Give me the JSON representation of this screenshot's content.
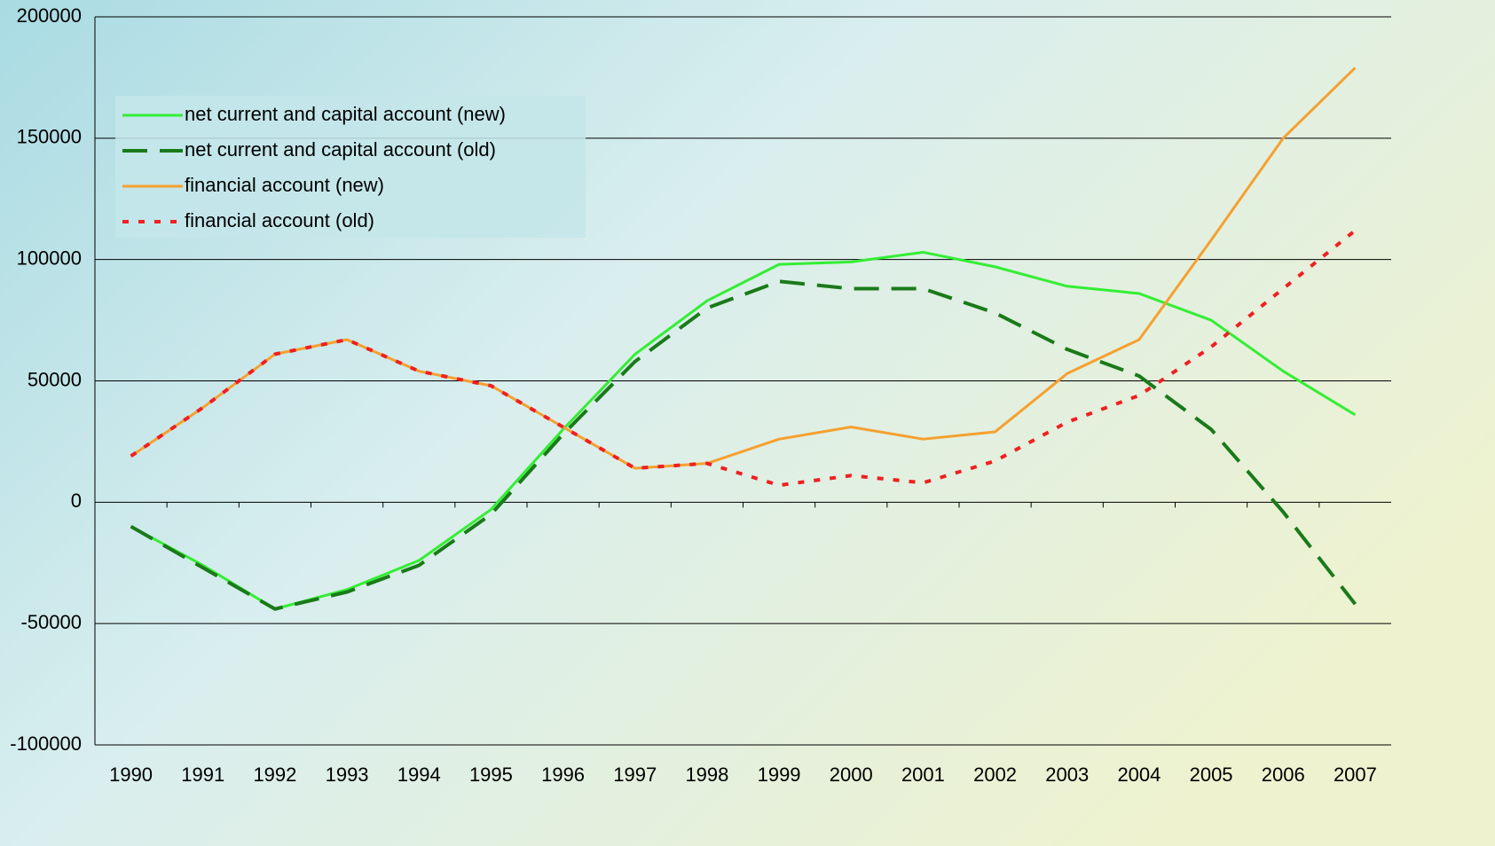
{
  "chart_data": {
    "type": "line",
    "categories": [
      "1990",
      "1991",
      "1992",
      "1993",
      "1994",
      "1995",
      "1996",
      "1997",
      "1998",
      "1999",
      "2000",
      "2001",
      "2002",
      "2003",
      "2004",
      "2005",
      "2006",
      "2007"
    ],
    "series": [
      {
        "name": "net current and capital account (new)",
        "color": "#33ee33",
        "dash": "solid",
        "values": [
          -10000,
          -26000,
          -44000,
          -36000,
          -24000,
          -3000,
          30000,
          61000,
          83000,
          98000,
          99000,
          103000,
          97000,
          89000,
          86000,
          75000,
          54000,
          36000
        ]
      },
      {
        "name": "net current and capital account (old)",
        "color": "#1a7a1a",
        "dash": "dashed",
        "values": [
          -10000,
          -27000,
          -44000,
          -37000,
          -26000,
          -5000,
          28000,
          58000,
          80000,
          91000,
          88000,
          88000,
          78000,
          63000,
          52000,
          30000,
          -4000,
          -42000
        ]
      },
      {
        "name": "financial account (new)",
        "color": "#f5a030",
        "dash": "solid",
        "values": [
          19000,
          39000,
          61000,
          67000,
          54000,
          48000,
          31000,
          14000,
          16000,
          26000,
          31000,
          26000,
          29000,
          53000,
          67000,
          108000,
          150000,
          179000
        ]
      },
      {
        "name": "financial account (old)",
        "color": "#ee2020",
        "dash": "dotted",
        "values": [
          19000,
          39000,
          61000,
          67000,
          54000,
          48000,
          31000,
          14000,
          16000,
          7000,
          11000,
          8000,
          17000,
          33000,
          44000,
          64000,
          88000,
          112000
        ]
      }
    ],
    "ylim": [
      -100000,
      200000
    ],
    "yticks": [
      -100000,
      -50000,
      0,
      50000,
      100000,
      150000,
      200000
    ],
    "grid": true,
    "legend": "upper left"
  }
}
